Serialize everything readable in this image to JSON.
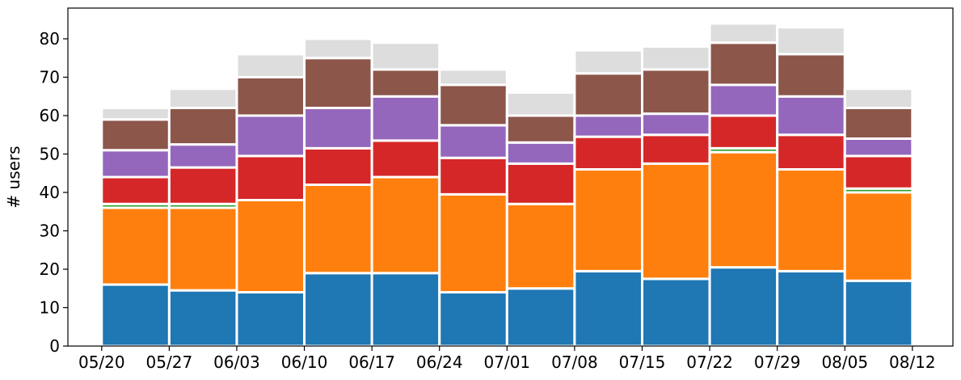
{
  "chart_data": {
    "type": "bar",
    "stacked": true,
    "title": "",
    "xlabel": "",
    "ylabel": "# users",
    "ylim": [
      0,
      88
    ],
    "yticks": [
      0,
      10,
      20,
      30,
      40,
      50,
      60,
      70,
      80
    ],
    "xlim": [
      -0.5,
      12.6
    ],
    "xtick_labels": [
      "05/20",
      "05/27",
      "06/03",
      "06/10",
      "06/17",
      "06/24",
      "07/01",
      "07/08",
      "07/15",
      "07/22",
      "07/29",
      "08/05",
      "08/12"
    ],
    "grid": false,
    "legend": "none",
    "bar_count": 12,
    "series": [
      {
        "color": "#1f77b4",
        "values": [
          16,
          14.5,
          14,
          19,
          19,
          14,
          15,
          19.5,
          17.5,
          20.5,
          19.5,
          17
        ]
      },
      {
        "color": "#ff7f0e",
        "values": [
          20,
          21.5,
          24,
          23,
          25,
          25.5,
          22,
          26.5,
          30,
          30,
          26.5,
          23
        ]
      },
      {
        "color": "#2ca02c",
        "values": [
          1,
          1,
          0,
          0,
          0,
          0,
          0,
          0,
          0,
          1,
          0,
          1
        ]
      },
      {
        "color": "#d62728",
        "values": [
          7,
          9.5,
          11.5,
          9.5,
          9.5,
          9.5,
          10.5,
          8.5,
          7.5,
          8.5,
          9,
          8.5
        ]
      },
      {
        "color": "#9467bd",
        "values": [
          7,
          6,
          10.5,
          10.5,
          11.5,
          8.5,
          5.5,
          5.5,
          5.5,
          8,
          10,
          4.5
        ]
      },
      {
        "color": "#8c564b",
        "values": [
          8,
          9.5,
          10,
          13,
          7,
          10.5,
          7,
          11,
          11.5,
          11,
          11,
          8
        ]
      },
      {
        "color": "#dddddd",
        "values": [
          3,
          5,
          6,
          5,
          7,
          4,
          6,
          6,
          6,
          5,
          7,
          5
        ]
      }
    ]
  }
}
